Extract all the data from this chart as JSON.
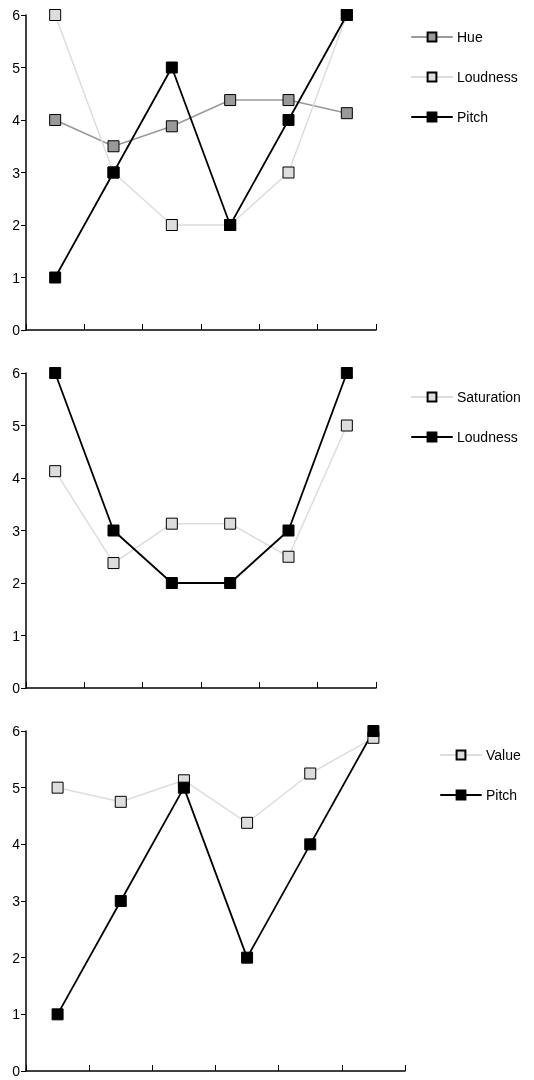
{
  "chart_data": [
    {
      "type": "line",
      "categories": [
        null,
        null,
        null,
        null,
        null,
        null
      ],
      "ylim": [
        0,
        6
      ],
      "yticks": [
        0,
        1,
        2,
        3,
        4,
        5,
        6
      ],
      "grid": false,
      "legend": "top right",
      "marker": "square",
      "line_style": "solid",
      "tick_labels": "y",
      "series": [
        {
          "name": "Hue",
          "color": "#999999",
          "values": [
            4,
            3.5,
            3.88,
            4.38,
            4.38,
            4.13
          ]
        },
        {
          "name": "Loudness",
          "color": "#dddddd",
          "values": [
            6,
            3,
            2,
            2,
            3,
            6
          ]
        },
        {
          "name": "Pitch",
          "color": "#000000",
          "values": [
            1,
            3,
            5,
            2,
            4,
            6
          ]
        }
      ]
    },
    {
      "type": "line",
      "categories": [
        null,
        null,
        null,
        null,
        null,
        null
      ],
      "ylim": [
        0,
        6
      ],
      "yticks": [
        0,
        1,
        2,
        3,
        4,
        5,
        6
      ],
      "grid": false,
      "legend": "top right",
      "marker": "square",
      "line_style": "solid",
      "tick_labels": "y",
      "series": [
        {
          "name": "Saturation",
          "color": "#dddddd",
          "values": [
            4.13,
            2.38,
            3.13,
            3.13,
            2.5,
            5
          ]
        },
        {
          "name": "Loudness",
          "color": "#000000",
          "values": [
            6,
            3,
            2,
            2,
            3,
            6
          ]
        }
      ]
    },
    {
      "type": "line",
      "categories": [
        null,
        null,
        null,
        null,
        null,
        null
      ],
      "ylim": [
        0,
        6
      ],
      "yticks": [
        0,
        1,
        2,
        3,
        4,
        5,
        6
      ],
      "grid": false,
      "legend": "top right",
      "marker": "square",
      "line_style": "solid",
      "tick_labels": "y",
      "series": [
        {
          "name": "Value",
          "color": "#dddddd",
          "values": [
            5,
            4.75,
            5.13,
            4.38,
            5.25,
            5.88
          ]
        },
        {
          "name": "Pitch",
          "color": "#000000",
          "values": [
            1,
            3,
            5,
            2,
            4,
            6
          ]
        }
      ]
    }
  ]
}
